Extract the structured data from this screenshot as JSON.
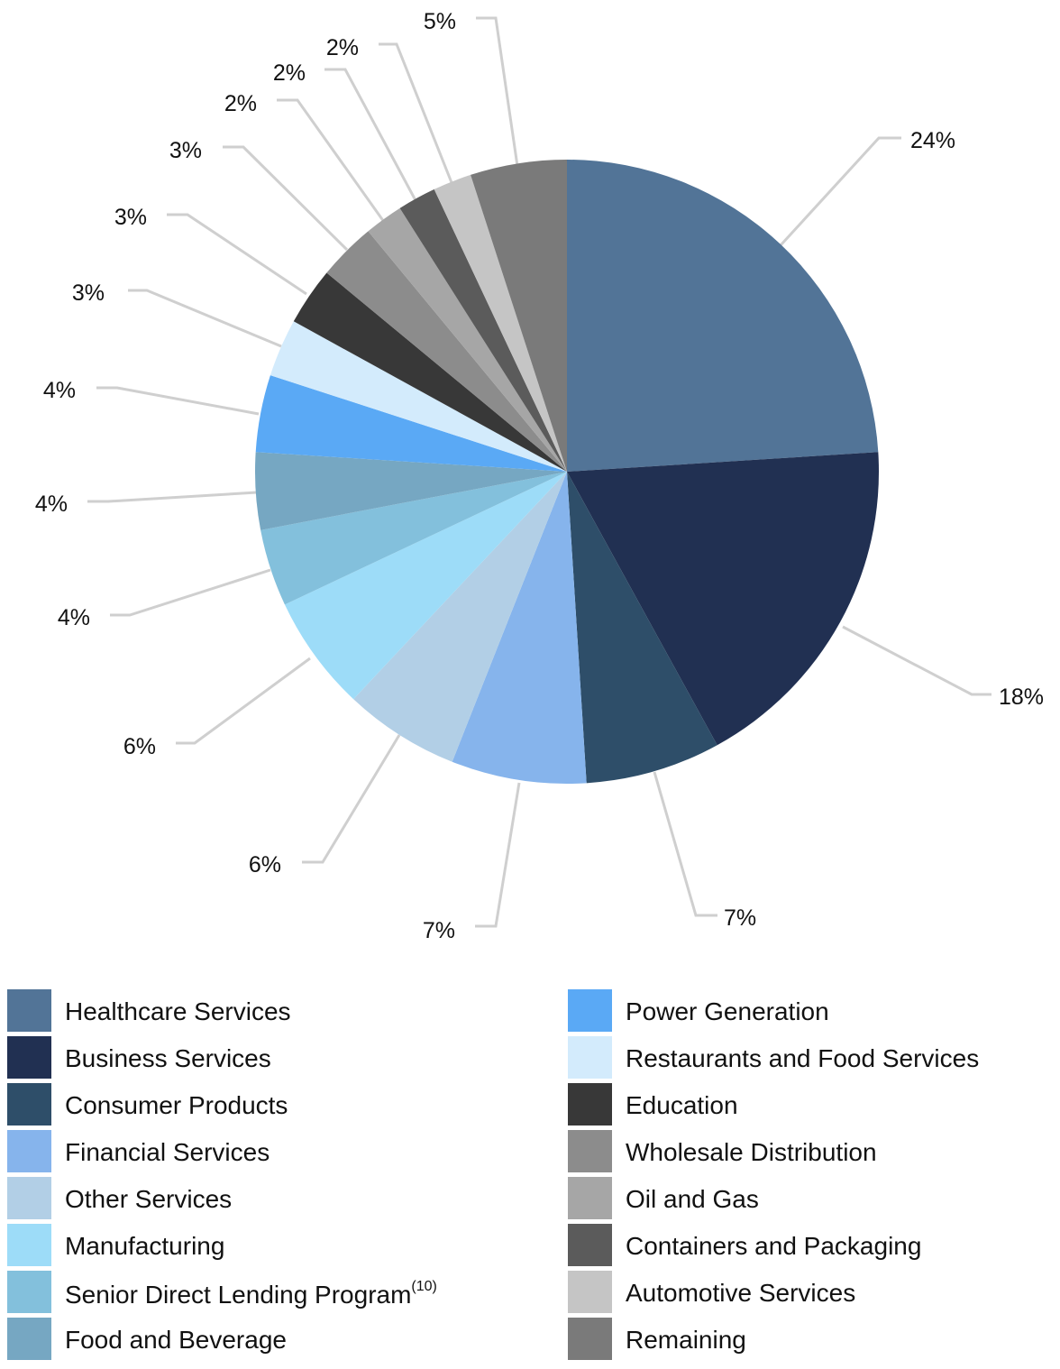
{
  "chart_data": {
    "type": "pie",
    "slices": [
      {
        "label": "Healthcare Services",
        "value": 24,
        "display": "24%",
        "color": "#527497"
      },
      {
        "label": "Business Services",
        "value": 18,
        "display": "18%",
        "color": "#213052"
      },
      {
        "label": "Consumer Products",
        "value": 7,
        "display": "7%",
        "color": "#2e4e69"
      },
      {
        "label": "Financial Services",
        "value": 7,
        "display": "7%",
        "color": "#86b4ec"
      },
      {
        "label": "Other Services",
        "value": 6,
        "display": "6%",
        "color": "#b2cfe6"
      },
      {
        "label": "Manufacturing",
        "value": 6,
        "display": "6%",
        "color": "#9ddcf8"
      },
      {
        "label": "Senior Direct Lending Program",
        "label_note": "(10)",
        "value": 4,
        "display": "4%",
        "color": "#83c0dc"
      },
      {
        "label": "Food and Beverage",
        "value": 4,
        "display": "4%",
        "color": "#76a7c2"
      },
      {
        "label": "Power Generation",
        "value": 4,
        "display": "4%",
        "color": "#5aa9f5"
      },
      {
        "label": "Restaurants and Food Services",
        "value": 3,
        "display": "3%",
        "color": "#d3ebfc"
      },
      {
        "label": "Education",
        "value": 3,
        "display": "3%",
        "color": "#383838"
      },
      {
        "label": "Wholesale Distribution",
        "value": 3,
        "display": "3%",
        "color": "#8c8c8c"
      },
      {
        "label": "Oil and Gas",
        "value": 2,
        "display": "2%",
        "color": "#a6a6a6"
      },
      {
        "label": "Containers and Packaging",
        "value": 2,
        "display": "2%",
        "color": "#5b5b5b"
      },
      {
        "label": "Automotive Services",
        "value": 2,
        "display": "2%",
        "color": "#c5c5c5"
      },
      {
        "label": "Remaining",
        "value": 5,
        "display": "5%",
        "color": "#7a7a7a"
      }
    ],
    "legend_placement": "bottom, two columns",
    "leader_line_color": "#cfcfcf"
  }
}
